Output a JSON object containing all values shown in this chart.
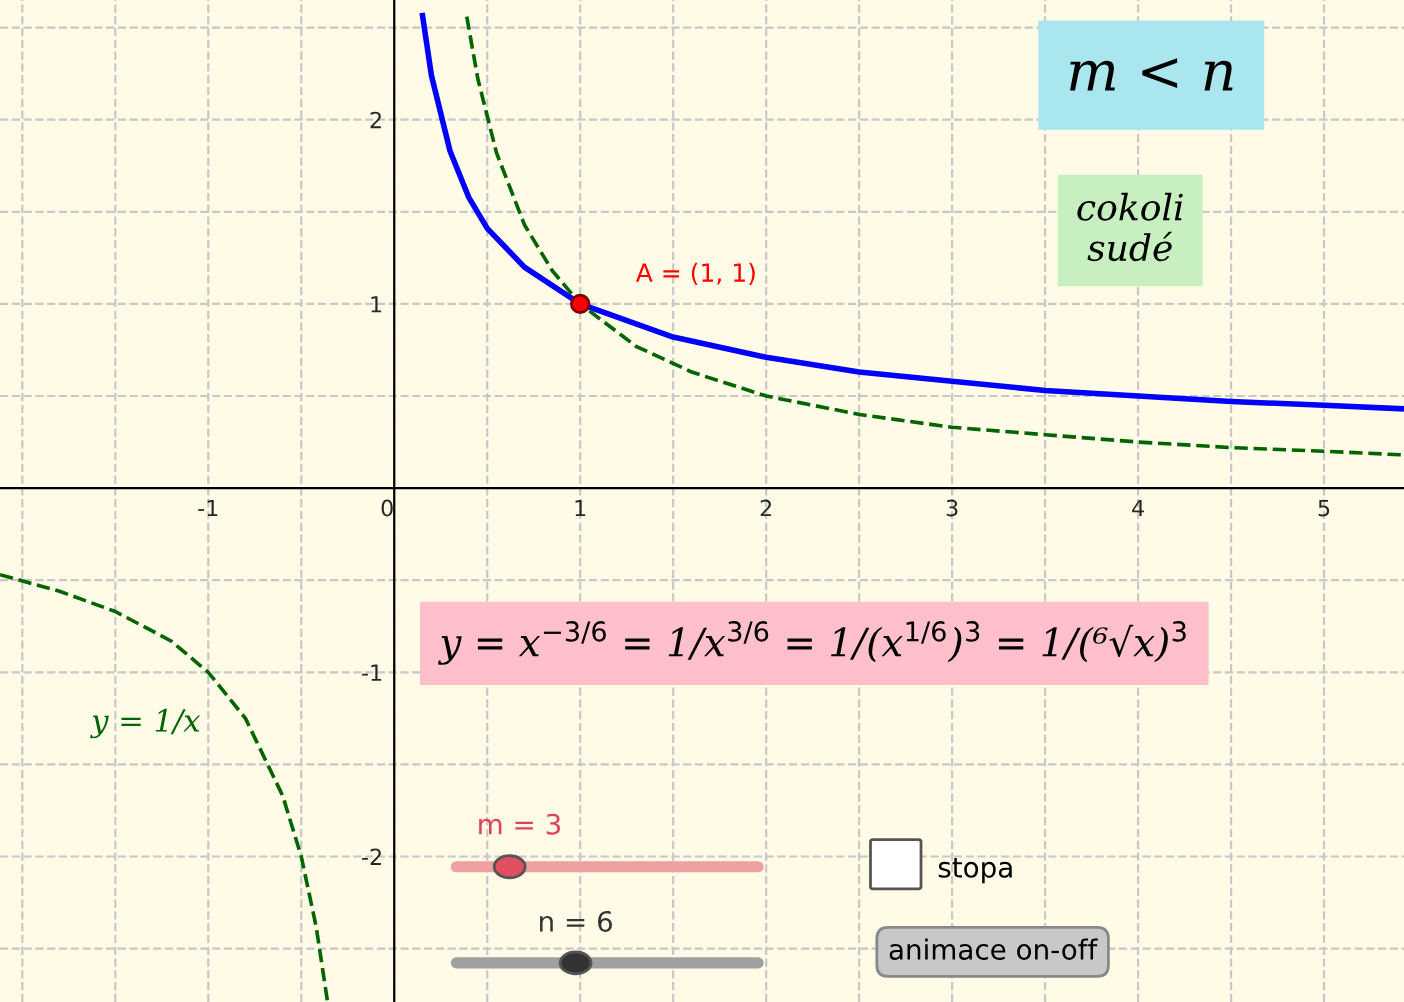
{
  "chart_data": {
    "type": "line",
    "x": [
      0.15,
      0.2,
      0.3,
      0.4,
      0.5,
      0.7,
      1,
      1.5,
      2,
      2.5,
      3,
      3.5,
      4,
      4.5,
      5,
      5.43
    ],
    "series": [
      {
        "color": "#0000ff",
        "values": [
          2.58,
          2.24,
          1.83,
          1.58,
          1.41,
          1.2,
          1,
          0.82,
          0.71,
          0.63,
          0.58,
          0.53,
          0.5,
          0.47,
          0.45,
          0.43
        ],
        "line_style": "solid"
      },
      {
        "name": "y = 1/x",
        "color": "#006400",
        "line_style": "dashed",
        "x": [
          -2.12,
          -1.8,
          -1.5,
          -1.2,
          -1,
          -0.8,
          -0.6,
          -0.5,
          -0.42,
          -0.36,
          null,
          0.39,
          0.45,
          0.55,
          0.7,
          0.85,
          1,
          1.3,
          1.6,
          2,
          2.5,
          3,
          3.5,
          4,
          4.5,
          5,
          5.43
        ],
        "values": [
          -0.47,
          -0.56,
          -0.67,
          -0.83,
          -1,
          -1.25,
          -1.67,
          -2,
          -2.38,
          -2.78,
          null,
          2.56,
          2.22,
          1.82,
          1.43,
          1.18,
          1,
          0.77,
          0.63,
          0.5,
          0.4,
          0.33,
          0.29,
          0.25,
          0.22,
          0.2,
          0.18
        ]
      },
      {
        "type": "scatter",
        "color": "#ff0000",
        "marker": "circle",
        "x": [
          1
        ],
        "values": [
          1
        ]
      }
    ],
    "xlim": [
      -2.12,
      5.43
    ],
    "ylim": [
      -2.79,
      2.65
    ],
    "xticks": [
      -1,
      0,
      1,
      2,
      3,
      4,
      5,
      {
        "value": -2,
        "label": null
      },
      {
        "value": -1.5,
        "label": null
      },
      {
        "value": -0.5,
        "label": null
      },
      {
        "value": 0.5,
        "label": null
      },
      {
        "value": 1.5,
        "label": null
      },
      {
        "value": 2.5,
        "label": null
      },
      {
        "value": 3.5,
        "label": null
      },
      {
        "value": 4.5,
        "label": null
      }
    ],
    "yticks": [
      -2,
      -1,
      1,
      2,
      {
        "value": -2.5,
        "label": null
      },
      {
        "value": -1.5,
        "label": null
      },
      {
        "value": -0.5,
        "label": null
      },
      {
        "value": 0.5,
        "label": null
      },
      {
        "value": 1.5,
        "label": null
      },
      {
        "value": 2.5,
        "label": null
      }
    ],
    "grid": true,
    "annotations": [
      {
        "text": "A = (1, 1)",
        "x": 1,
        "y": 1
      },
      "m < n",
      "cokoli\nsudé",
      "y = x$^{−3/6}$ = 1/x$^{3/6}$ = 1/(x$^{1/6}$)$^{3}$ = 1/(⁶√x)$^{3}$",
      "m = 3",
      "n = 6",
      "stopa",
      "animace on-off"
    ]
  }
}
